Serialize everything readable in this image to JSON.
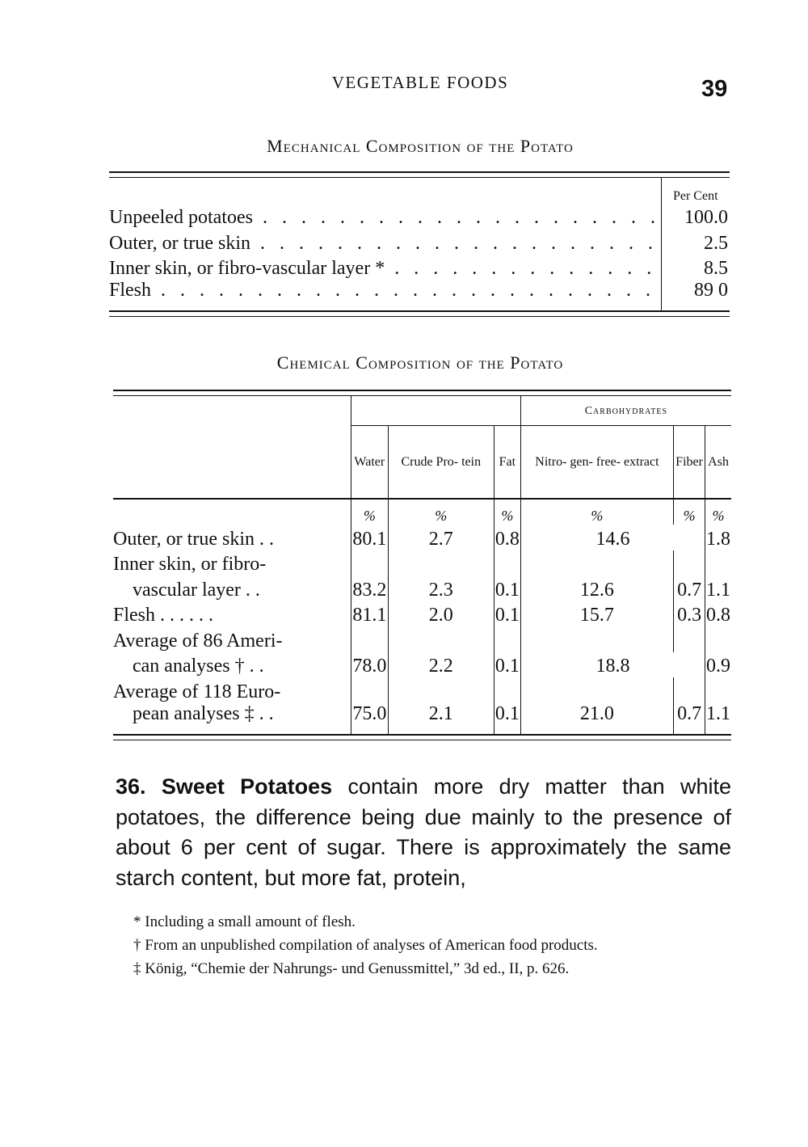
{
  "header": {
    "running_title": "VEGETABLE FOODS",
    "page_number": "39"
  },
  "mechanical": {
    "title": "Mechanical Composition of the Potato",
    "column": "Per Cent",
    "rows": [
      {
        "label": "Unpeeled potatoes",
        "value": "100.0"
      },
      {
        "label": "Outer, or true skin",
        "value": "2.5"
      },
      {
        "label": "Inner skin, or fibro-vascular layer *",
        "value": "8.5"
      },
      {
        "label": "Flesh",
        "value": "89 0"
      }
    ]
  },
  "chemical": {
    "title": "Chemical Composition of the Potato",
    "group_header": "Carbohydrates",
    "columns": [
      "Water",
      "Crude Pro- tein",
      "Fat",
      "Nitro- gen- free- extract",
      "Fiber",
      "Ash"
    ],
    "unit": "%",
    "rows": [
      {
        "label1": "Outer, or true skin . .",
        "label2": "",
        "water": "80.1",
        "protein": "2.7",
        "fat": "0.8",
        "carb_combined": "14.6",
        "ash": "1.8"
      },
      {
        "label1": "Inner skin, or fibro-",
        "label2": "vascular layer . .",
        "water": "83.2",
        "protein": "2.3",
        "fat": "0.1",
        "nfe": "12.6",
        "fiber": "0.7",
        "ash": "1.1"
      },
      {
        "label1": "Flesh . . . . . .",
        "label2": "",
        "water": "81.1",
        "protein": "2.0",
        "fat": "0.1",
        "nfe": "15.7",
        "fiber": "0.3",
        "ash": "0.8"
      },
      {
        "label1": "Average of 86 Ameri-",
        "label2": "can analyses † . .",
        "water": "78.0",
        "protein": "2.2",
        "fat": "0.1",
        "carb_combined": "18.8",
        "ash": "0.9"
      },
      {
        "label1": "Average of 118 Euro-",
        "label2": "pean analyses ‡ . .",
        "water": "75.0",
        "protein": "2.1",
        "fat": "0.1",
        "nfe": "21.0",
        "fiber": "0.7",
        "ash": "1.1"
      }
    ]
  },
  "paragraph": {
    "number": "36.",
    "heading": "Sweet Potatoes",
    "text": " contain more dry matter than white potatoes, the difference being due mainly to the presence of about 6 per cent of sugar. There is approximately the same starch content, but more fat, protein,"
  },
  "footnotes": [
    "* Including a small amount of flesh.",
    "† From an unpublished compilation of analyses of American food products.",
    "‡ König, “Chemie der Nahrungs- und Genussmittel,” 3d ed., II, p. 626."
  ]
}
